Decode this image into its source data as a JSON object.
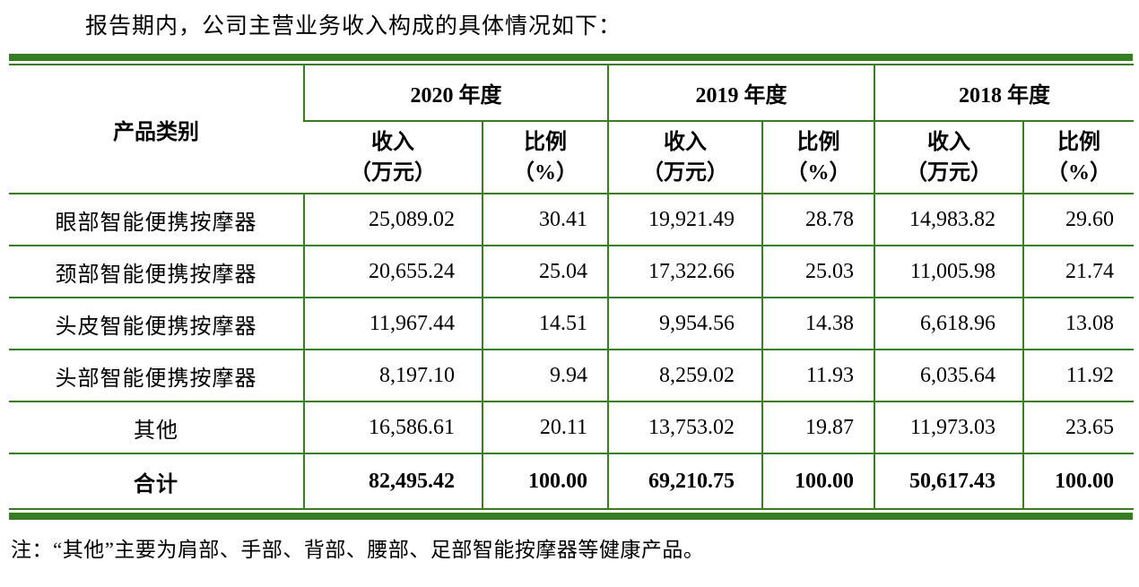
{
  "intro": "报告期内，公司主营业务收入构成的具体情况如下：",
  "table": {
    "header": {
      "product_col": "产品类别",
      "years": [
        {
          "label": "2020 年度"
        },
        {
          "label": "2019 年度"
        },
        {
          "label": "2018 年度"
        }
      ],
      "income_label": "收入\n（万元）",
      "ratio_label": "比例\n（%）"
    },
    "rows": [
      {
        "category": "眼部智能便携按摩器",
        "values": [
          "25,089.02",
          "30.41",
          "19,921.49",
          "28.78",
          "14,983.82",
          "29.60"
        ]
      },
      {
        "category": "颈部智能便携按摩器",
        "values": [
          "20,655.24",
          "25.04",
          "17,322.66",
          "25.03",
          "11,005.98",
          "21.74"
        ]
      },
      {
        "category": "头皮智能便携按摩器",
        "values": [
          "11,967.44",
          "14.51",
          "9,954.56",
          "14.38",
          "6,618.96",
          "13.08"
        ]
      },
      {
        "category": "头部智能便携按摩器",
        "values": [
          "8,197.10",
          "9.94",
          "8,259.02",
          "11.93",
          "6,035.64",
          "11.92"
        ]
      },
      {
        "category": "其他",
        "values": [
          "16,586.61",
          "20.11",
          "13,753.02",
          "19.87",
          "11,973.03",
          "23.65"
        ]
      }
    ],
    "total": {
      "category": "合计",
      "values": [
        "82,495.42",
        "100.00",
        "69,210.75",
        "100.00",
        "50,617.43",
        "100.00"
      ]
    }
  },
  "note": "注：“其他”主要为肩部、手部、背部、腰部、足部智能按摩器等健康产品。",
  "colors": {
    "table_border": "#377d22"
  }
}
